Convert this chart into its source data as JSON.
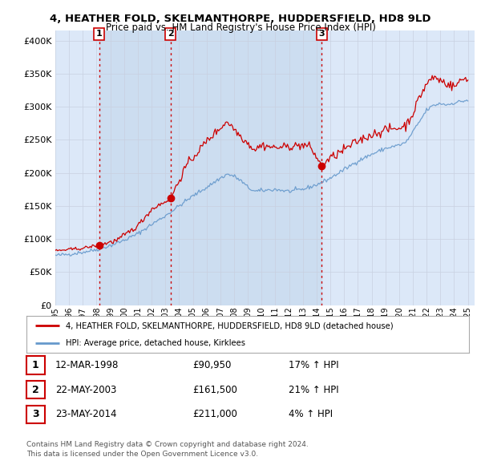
{
  "title_line1": "4, HEATHER FOLD, SKELMANTHORPE, HUDDERSFIELD, HD8 9LD",
  "title_line2": "Price paid vs. HM Land Registry's House Price Index (HPI)",
  "ytick_values": [
    0,
    50000,
    100000,
    150000,
    200000,
    250000,
    300000,
    350000,
    400000
  ],
  "ylim": [
    0,
    415000
  ],
  "xlim_start": 1995.0,
  "xlim_end": 2025.5,
  "sale_dates": [
    1998.19,
    2003.38,
    2014.38
  ],
  "sale_prices": [
    90950,
    161500,
    211000
  ],
  "sale_labels": [
    "1",
    "2",
    "3"
  ],
  "grid_color": "#c8d0e0",
  "background_color": "#ffffff",
  "plot_bg_color": "#dce8f8",
  "shade_color": "#ccdcf0",
  "red_line_color": "#cc0000",
  "blue_line_color": "#6699cc",
  "sale_marker_color": "#cc0000",
  "vline_color": "#cc0000",
  "legend_label_red": "4, HEATHER FOLD, SKELMANTHORPE, HUDDERSFIELD, HD8 9LD (detached house)",
  "legend_label_blue": "HPI: Average price, detached house, Kirklees",
  "table_rows": [
    {
      "num": "1",
      "date": "12-MAR-1998",
      "price": "£90,950",
      "hpi": "17% ↑ HPI"
    },
    {
      "num": "2",
      "date": "22-MAY-2003",
      "price": "£161,500",
      "hpi": "21% ↑ HPI"
    },
    {
      "num": "3",
      "date": "23-MAY-2014",
      "price": "£211,000",
      "hpi": "4% ↑ HPI"
    }
  ],
  "footer_line1": "Contains HM Land Registry data © Crown copyright and database right 2024.",
  "footer_line2": "This data is licensed under the Open Government Licence v3.0.",
  "xtick_years": [
    1995,
    1996,
    1997,
    1998,
    1999,
    2000,
    2001,
    2002,
    2003,
    2004,
    2005,
    2006,
    2007,
    2008,
    2009,
    2010,
    2011,
    2012,
    2013,
    2014,
    2015,
    2016,
    2017,
    2018,
    2019,
    2020,
    2021,
    2022,
    2023,
    2024,
    2025
  ]
}
